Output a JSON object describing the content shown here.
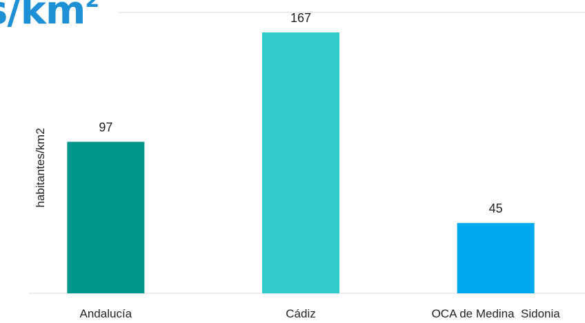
{
  "header": {
    "title_fragment": "s/km",
    "title_superscript": "2",
    "title_color": "#1e90d6"
  },
  "chart_data": {
    "type": "bar",
    "categories": [
      "Andalucía",
      "Cádiz",
      "OCA de Medina  Sidonia"
    ],
    "values": [
      97,
      167,
      45
    ],
    "colors": [
      "#00968c",
      "#33cccc",
      "#00aaef"
    ],
    "ylabel": "habitantes/km2",
    "xlabel": "",
    "ylim": [
      0,
      180
    ],
    "grid": false,
    "legend": "none"
  }
}
